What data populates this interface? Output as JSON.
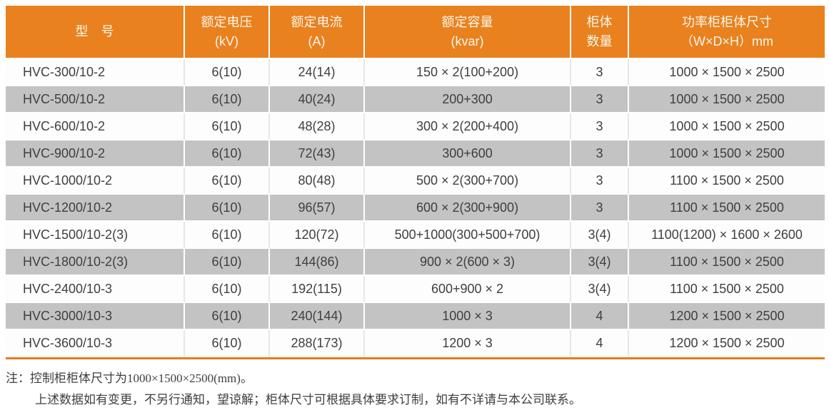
{
  "table": {
    "column_keys": [
      "model",
      "rated_voltage",
      "rated_current",
      "rated_capacity",
      "cabinet_count",
      "dimensions"
    ],
    "columns": [
      {
        "line1": "型　号",
        "line2": ""
      },
      {
        "line1": "额定电压",
        "line2": "(kV)"
      },
      {
        "line1": "额定电流",
        "line2": "(A)"
      },
      {
        "line1": "额定容量",
        "line2": "(kvar)"
      },
      {
        "line1": "柜体",
        "line2": "数量"
      },
      {
        "line1": "功率柜柜体尺寸",
        "line2": "（W×D×H）mm"
      }
    ],
    "rows": [
      [
        "HVC-300/10-2",
        "6(10)",
        "24(14)",
        "150 × 2(100+200)",
        "3",
        "1000 × 1500 × 2500"
      ],
      [
        "HVC-500/10-2",
        "6(10)",
        "40(24)",
        "200+300",
        "3",
        "1000 × 1500 × 2500"
      ],
      [
        "HVC-600/10-2",
        "6(10)",
        "48(28)",
        "300 × 2(200+400)",
        "3",
        "1000 × 1500 × 2500"
      ],
      [
        "HVC-900/10-2",
        "6(10)",
        "72(43)",
        "300+600",
        "3",
        "1000 × 1500 × 2500"
      ],
      [
        "HVC-1000/10-2",
        "6(10)",
        "80(48)",
        "500 × 2(300+700)",
        "3",
        "1100 × 1500 × 2500"
      ],
      [
        "HVC-1200/10-2",
        "6(10)",
        "96(57)",
        "600 × 2(300+900)",
        "3",
        "1100 × 1500 × 2500"
      ],
      [
        "HVC-1500/10-2(3)",
        "6(10)",
        "120(72)",
        "500+1000(300+500+700)",
        "3(4)",
        "1100(1200) × 1600 × 2600"
      ],
      [
        "HVC-1800/10-2(3)",
        "6(10)",
        "144(86)",
        "900 × 2(600 × 3)",
        "3(4)",
        "1100 × 1500 × 2500"
      ],
      [
        "HVC-2400/10-3",
        "6(10)",
        "192(115)",
        "600+900 × 2",
        "3(4)",
        "1100 × 1500 × 2500"
      ],
      [
        "HVC-3000/10-3",
        "6(10)",
        "240(144)",
        "1000 × 3",
        "4",
        "1200 × 1500 × 2500"
      ],
      [
        "HVC-3600/10-3",
        "6(10)",
        "288(173)",
        "1200 × 3",
        "4",
        "1200 × 1500 × 2500"
      ]
    ]
  },
  "notes": {
    "prefix": "注：",
    "line1": "控制柜柜体尺寸为1000×1500×2500(mm)。",
    "line2": "上述数据如有变更，不另行通知，望谅解；柜体尺寸可根据具体要求订制，如有不详请与本公司联系。"
  },
  "colors": {
    "header_bg": "#e8811e",
    "header_text": "#fdf6ec",
    "row_alt_bg": "#c3c3c3",
    "bottom_rule": "#e07e1d",
    "body_text": "#3f3f3f"
  }
}
